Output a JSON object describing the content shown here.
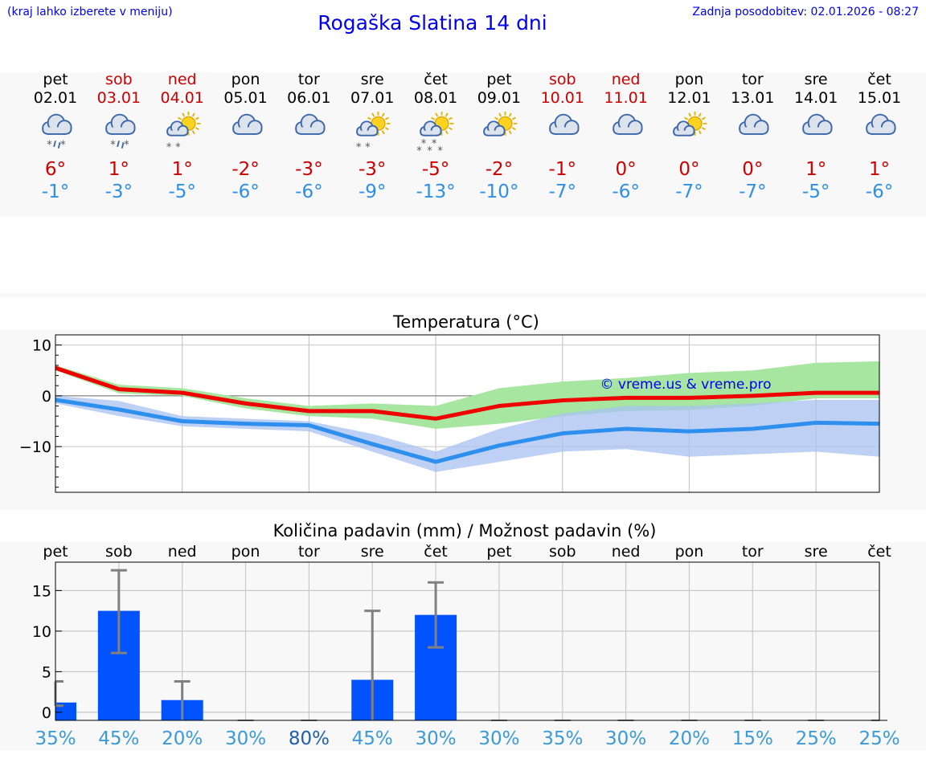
{
  "header": {
    "location_hint": "(kraj lahko izberete v meniju)",
    "title": "Rogaška Slatina 14 dni",
    "updated": "Zadnja posodobitev: 02.01.2026 - 08:27"
  },
  "colors": {
    "weekend": "#cc0000",
    "weekday": "#000000",
    "tmax": "#cc0000",
    "tmin": "#2e8fe8",
    "pct_high": "#1f5fae",
    "pct": "#3a9bd8"
  },
  "days": [
    {
      "name": "pet",
      "date": "02.01",
      "weekend": false,
      "icon": "cloud-rain-snow-icon",
      "tmax": "6°",
      "tmin": "-1°"
    },
    {
      "name": "sob",
      "date": "03.01",
      "weekend": true,
      "icon": "cloud-rain-snow-icon",
      "tmax": "1°",
      "tmin": "-3°"
    },
    {
      "name": "ned",
      "date": "04.01",
      "weekend": true,
      "icon": "sun-cloud-snow-icon",
      "tmax": "1°",
      "tmin": "-5°"
    },
    {
      "name": "pon",
      "date": "05.01",
      "weekend": false,
      "icon": "cloud-icon",
      "tmax": "-2°",
      "tmin": "-6°"
    },
    {
      "name": "tor",
      "date": "06.01",
      "weekend": false,
      "icon": "cloud-icon",
      "tmax": "-3°",
      "tmin": "-6°"
    },
    {
      "name": "sre",
      "date": "07.01",
      "weekend": false,
      "icon": "sun-cloud-snow-icon",
      "tmax": "-3°",
      "tmin": "-9°"
    },
    {
      "name": "čet",
      "date": "08.01",
      "weekend": false,
      "icon": "sun-cloud-heavy-snow-icon",
      "tmax": "-5°",
      "tmin": "-13°"
    },
    {
      "name": "pet",
      "date": "09.01",
      "weekend": false,
      "icon": "sun-cloud-icon",
      "tmax": "-2°",
      "tmin": "-10°"
    },
    {
      "name": "sob",
      "date": "10.01",
      "weekend": true,
      "icon": "cloud-icon",
      "tmax": "-1°",
      "tmin": "-7°"
    },
    {
      "name": "ned",
      "date": "11.01",
      "weekend": true,
      "icon": "cloud-icon",
      "tmax": "0°",
      "tmin": "-6°"
    },
    {
      "name": "pon",
      "date": "12.01",
      "weekend": false,
      "icon": "sun-cloud-icon",
      "tmax": "0°",
      "tmin": "-7°"
    },
    {
      "name": "tor",
      "date": "13.01",
      "weekend": false,
      "icon": "cloud-icon",
      "tmax": "0°",
      "tmin": "-7°"
    },
    {
      "name": "sre",
      "date": "14.01",
      "weekend": false,
      "icon": "cloud-icon",
      "tmax": "1°",
      "tmin": "-5°"
    },
    {
      "name": "čet",
      "date": "15.01",
      "weekend": false,
      "icon": "cloud-icon",
      "tmax": "1°",
      "tmin": "-6°"
    }
  ],
  "chart_data": [
    {
      "type": "line",
      "title": "Temperatura (°C)",
      "watermark": "© vreme.us & vreme.pro",
      "x": [
        0,
        1,
        2,
        3,
        4,
        5,
        6,
        7,
        8,
        9,
        10,
        11,
        12,
        13
      ],
      "ylim": [
        -19,
        12
      ],
      "yticks": [
        {
          "v": 10,
          "label": "10"
        },
        {
          "v": 0,
          "label": "0"
        },
        {
          "v": -10,
          "label": "−10"
        }
      ],
      "series": [
        {
          "name": "max",
          "color": "#ee0000",
          "values": [
            5.5,
            1.3,
            0.6,
            -1.5,
            -3.0,
            -3.0,
            -4.5,
            -2.0,
            -0.9,
            -0.4,
            -0.4,
            0.0,
            0.6,
            0.6
          ]
        },
        {
          "name": "min",
          "color": "#2e8fee",
          "values": [
            -0.8,
            -2.7,
            -5.0,
            -5.5,
            -5.8,
            -9.5,
            -13.0,
            -9.8,
            -7.4,
            -6.5,
            -7.0,
            -6.5,
            -5.3,
            -5.5
          ]
        }
      ],
      "bands": [
        {
          "name": "max-range",
          "color": "#a6e6a0",
          "low": [
            5.0,
            0.5,
            0.0,
            -2.5,
            -4.0,
            -4.5,
            -6.5,
            -5.5,
            -4.0,
            -3.0,
            -2.8,
            -2.0,
            -0.5,
            -0.5
          ],
          "high": [
            6.0,
            2.2,
            1.5,
            -0.5,
            -2.0,
            -1.5,
            -2.0,
            1.5,
            2.8,
            3.5,
            4.5,
            5.0,
            6.5,
            6.8
          ]
        },
        {
          "name": "min-range",
          "color": "#a8c2f2",
          "low": [
            -1.5,
            -4.0,
            -6.0,
            -6.5,
            -7.0,
            -11.0,
            -15.0,
            -13.0,
            -11.0,
            -10.5,
            -12.0,
            -11.5,
            -11.0,
            -12.0
          ],
          "high": [
            0.0,
            -1.0,
            -4.0,
            -4.5,
            -5.0,
            -7.5,
            -11.0,
            -6.5,
            -3.5,
            -2.0,
            -2.0,
            -1.5,
            -0.8,
            -0.8
          ]
        }
      ]
    },
    {
      "type": "bar",
      "title": "Količina padavin (mm) / Možnost padavin (%)",
      "categories": [
        "pet",
        "sob",
        "ned",
        "pon",
        "tor",
        "sre",
        "čet",
        "pet",
        "sob",
        "ned",
        "pon",
        "tor",
        "sre",
        "čet"
      ],
      "ylim": [
        -1,
        18.5
      ],
      "yticks": [
        {
          "v": 15,
          "label": "15"
        },
        {
          "v": 10,
          "label": "10"
        },
        {
          "v": 5,
          "label": "5"
        },
        {
          "v": 0,
          "label": "0"
        }
      ],
      "values": [
        1.2,
        12.5,
        1.5,
        0,
        0,
        4.0,
        12.0,
        0,
        0,
        0,
        0,
        0,
        0,
        0
      ],
      "error_low": [
        0.8,
        7.3,
        0,
        0,
        0,
        0,
        8.0,
        0,
        0,
        0,
        0,
        0,
        0,
        0
      ],
      "error_high": [
        3.8,
        17.5,
        3.8,
        0,
        0,
        12.5,
        16.0,
        0,
        0,
        0,
        0,
        0,
        0,
        0
      ],
      "probability": [
        {
          "label": "35%",
          "high": false
        },
        {
          "label": "45%",
          "high": false
        },
        {
          "label": "20%",
          "high": false
        },
        {
          "label": "30%",
          "high": false
        },
        {
          "label": "80%",
          "high": true
        },
        {
          "label": "45%",
          "high": false
        },
        {
          "label": "30%",
          "high": false
        },
        {
          "label": "30%",
          "high": false
        },
        {
          "label": "35%",
          "high": false
        },
        {
          "label": "30%",
          "high": false
        },
        {
          "label": "20%",
          "high": false
        },
        {
          "label": "15%",
          "high": false
        },
        {
          "label": "25%",
          "high": false
        },
        {
          "label": "25%",
          "high": false
        }
      ],
      "bar_color": "#0053ff",
      "error_color": "#808080"
    }
  ]
}
